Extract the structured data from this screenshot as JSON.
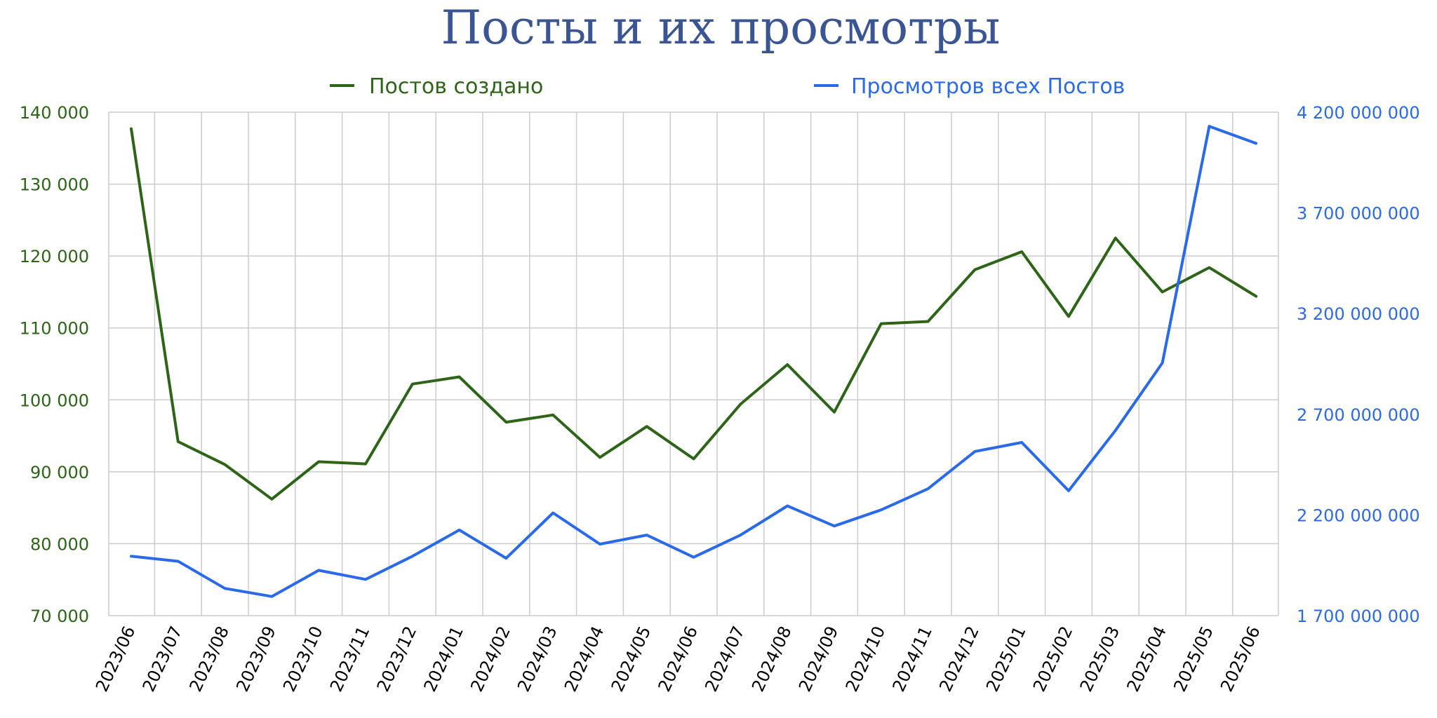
{
  "chart_data": {
    "type": "line",
    "title": "Посты и их просмотры",
    "categories": [
      "2023/06",
      "2023/07",
      "2023/08",
      "2023/09",
      "2023/10",
      "2023/11",
      "2023/12",
      "2024/01",
      "2024/02",
      "2024/03",
      "2024/04",
      "2024/05",
      "2024/06",
      "2024/07",
      "2024/08",
      "2024/09",
      "2024/10",
      "2024/11",
      "2024/12",
      "2025/01",
      "2025/02",
      "2025/03",
      "2025/04",
      "2025/05",
      "2025/06"
    ],
    "series": [
      {
        "name": "Постов создано",
        "axis": "left",
        "color": "#2e6418",
        "values": [
          137700,
          94200,
          91000,
          86200,
          91400,
          91100,
          102200,
          103200,
          96900,
          97900,
          92000,
          96300,
          91800,
          99400,
          104900,
          98300,
          110600,
          110900,
          118100,
          120600,
          111600,
          122500,
          115000,
          118400,
          114400
        ]
      },
      {
        "name": "Просмотров всех Постов",
        "axis": "right",
        "color": "#2a6ae8",
        "values": [
          1995000000,
          1970000000,
          1835000000,
          1795000000,
          1925000000,
          1880000000,
          1995000000,
          2125000000,
          1985000000,
          2210000000,
          2055000000,
          2100000000,
          1990000000,
          2100000000,
          2245000000,
          2145000000,
          2225000000,
          2330000000,
          2515000000,
          2560000000,
          2320000000,
          2620000000,
          2955000000,
          4130000000,
          4045000000
        ]
      }
    ],
    "y_left": {
      "min": 70000,
      "max": 140000,
      "step": 10000,
      "tick_labels": [
        "70 000",
        "80 000",
        "90 000",
        "100 000",
        "110 000",
        "120 000",
        "130 000",
        "140 000"
      ]
    },
    "y_right": {
      "min": 1700000000,
      "max": 4200000000,
      "step": 500000000,
      "tick_labels": [
        "1 700 000 000",
        "2 200 000 000",
        "2 700 000 000",
        "3 200 000 000",
        "3 700 000 000",
        "4 200 000 000"
      ]
    },
    "grid": true,
    "legend_position": "top"
  },
  "colors": {
    "title": "#3a5592",
    "left_axis": "#2e6418",
    "right_axis": "#2a6ae8",
    "grid": "#cccccc"
  }
}
